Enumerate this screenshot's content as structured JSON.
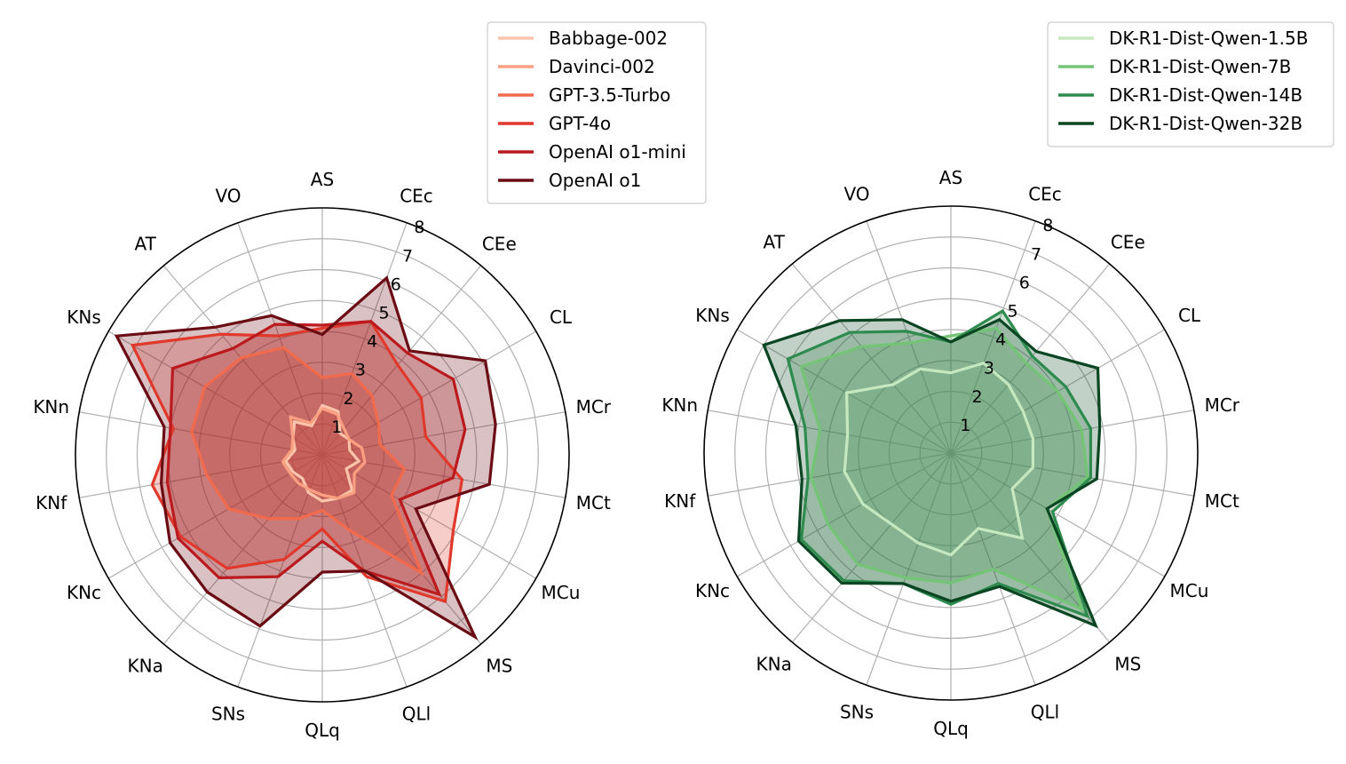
{
  "chart_data": [
    {
      "type": "radar",
      "title": "",
      "categories": [
        "AS",
        "CEc",
        "CEe",
        "CL",
        "MCr",
        "MCt",
        "MCu",
        "MS",
        "QLl",
        "QLq",
        "SNs",
        "KNa",
        "KNc",
        "KNf",
        "KNn",
        "KNs",
        "AT",
        "VO"
      ],
      "rlim": [
        0,
        8
      ],
      "r_ticks": [
        "1",
        "2",
        "3",
        "4",
        "5",
        "6",
        "7",
        "8"
      ],
      "legend_position": "top-right",
      "series": [
        {
          "name": "Babbage-002",
          "color": "#fbc4ab",
          "values": [
            1.6,
            1.5,
            0.9,
            1.0,
            0.9,
            1.2,
            0.9,
            1.5,
            1.5,
            1.5,
            1.3,
            1.0,
            1.1,
            1.2,
            0.9,
            1.1,
            1.4,
            1.0
          ]
        },
        {
          "name": "Davinci-002",
          "color": "#fca082",
          "values": [
            1.5,
            1.4,
            1.1,
            1.0,
            1.3,
            1.4,
            1.2,
            1.6,
            1.5,
            1.3,
            1.2,
            1.2,
            1.2,
            1.3,
            1.0,
            1.1,
            1.6,
            1.1
          ]
        },
        {
          "name": "GPT-3.5-Turbo",
          "color": "#f26a4c",
          "values": [
            2.5,
            2.8,
            2.5,
            2.1,
            1.9,
            2.7,
            2.6,
            5.0,
            2.6,
            1.8,
            2.2,
            2.7,
            3.5,
            3.8,
            4.3,
            4.4,
            4.1,
            3.7
          ]
        },
        {
          "name": "GPT-4o",
          "color": "#e0392c",
          "values": [
            4.1,
            4.6,
            3.8,
            3.7,
            3.4,
            4.6,
            4.9,
            6.2,
            4.2,
            2.4,
            3.6,
            4.8,
            5.3,
            5.6,
            4.9,
            7.1,
            5.1,
            4.1
          ]
        },
        {
          "name": "OpenAI o1-mini",
          "color": "#bb1a1e",
          "values": [
            4.2,
            4.6,
            4.3,
            4.9,
            4.7,
            4.3,
            2.9,
            5.9,
            4.0,
            2.8,
            4.2,
            5.2,
            5.4,
            5.1,
            5.0,
            5.6,
            4.5,
            4.5
          ]
        },
        {
          "name": "OpenAI o1",
          "color": "#6b0c14",
          "values": [
            3.9,
            6.1,
            4.4,
            6.1,
            5.7,
            5.5,
            3.5,
            7.7,
            4.0,
            3.8,
            5.9,
            5.8,
            5.7,
            5.3,
            5.2,
            7.7,
            5.4,
            4.8
          ]
        }
      ]
    },
    {
      "type": "radar",
      "title": "",
      "categories": [
        "AS",
        "CEc",
        "CEe",
        "CL",
        "MCr",
        "MCt",
        "MCu",
        "MS",
        "QLl",
        "QLq",
        "SNs",
        "KNa",
        "KNc",
        "KNf",
        "KNn",
        "KNs",
        "AT",
        "VO"
      ],
      "rlim": [
        0,
        8
      ],
      "r_ticks": [
        "1",
        "2",
        "3",
        "4",
        "5",
        "6",
        "7",
        "8"
      ],
      "legend_position": "top-right",
      "series": [
        {
          "name": "DK-R1-Dist-Qwen-1.5B",
          "color": "#c5e8bf",
          "values": [
            2.6,
            3.1,
            2.9,
            2.7,
            2.7,
            2.7,
            2.3,
            3.6,
            2.6,
            3.3,
            3.1,
            3.0,
            3.3,
            3.5,
            3.4,
            3.9,
            2.9,
            2.9
          ]
        },
        {
          "name": "DK-R1-Dist-Qwen-7B",
          "color": "#74c476",
          "values": [
            3.8,
            4.3,
            3.8,
            4.0,
            4.3,
            4.5,
            3.6,
            6.6,
            4.0,
            4.2,
            4.3,
            4.7,
            4.6,
            4.6,
            4.3,
            5.6,
            4.5,
            3.8
          ]
        },
        {
          "name": "DK-R1-Dist-Qwen-14B",
          "color": "#2e8b4e",
          "values": [
            3.6,
            4.9,
            4.1,
            4.3,
            4.6,
            4.6,
            3.8,
            6.9,
            4.5,
            4.9,
            4.5,
            5.4,
            5.6,
            4.7,
            4.8,
            6.1,
            5.1,
            4.2
          ]
        },
        {
          "name": "DK-R1-Dist-Qwen-32B",
          "color": "#0b4623",
          "values": [
            3.6,
            4.6,
            4.3,
            5.5,
            4.9,
            4.8,
            3.6,
            7.3,
            4.6,
            4.8,
            4.5,
            5.5,
            5.7,
            4.9,
            5.1,
            7.0,
            5.6,
            4.6
          ]
        }
      ]
    }
  ]
}
